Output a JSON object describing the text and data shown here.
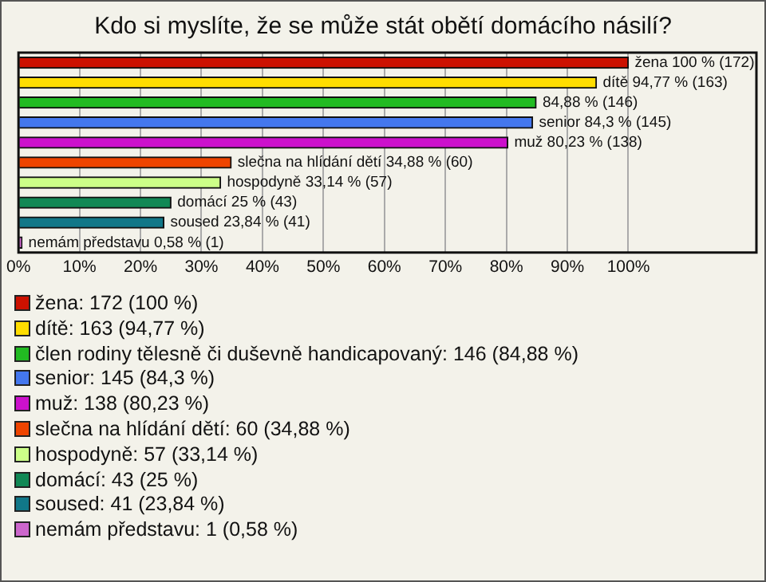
{
  "chart_data": {
    "type": "bar",
    "orientation": "horizontal",
    "title": "Kdo si myslíte, že se může stát obětí domácího násilí?",
    "categories": [
      null,
      null,
      null,
      null,
      null,
      null,
      null,
      null,
      null,
      null
    ],
    "values": [
      100,
      94.77,
      84.88,
      84.3,
      80.23,
      34.88,
      33.14,
      25,
      23.84,
      0.58
    ],
    "colors": [
      "#cc1100",
      "#ffdd00",
      "#22bb22",
      "#4477ee",
      "#cc11cc",
      "#ee4400",
      "#ccff88",
      "#118855",
      "#117788",
      "#cc66cc"
    ],
    "value_labels": [
      "žena 100 % (172)",
      "dítě 94,77 % (163)",
      "84,88 % (146)",
      "senior 84,3 % (145)",
      "muž 80,23 % (138)",
      "slečna na hlídání dětí 34,88 % (60)",
      "hospodyně 33,14 % (57)",
      "domácí 25 % (43)",
      "soused 23,84 % (41)",
      "nemám představu 0,58 % (1)"
    ],
    "annotations": [
      "žena: 172 (100 %)",
      "dítě: 163 (94,77 %)",
      "člen rodiny tělesně či duševně handicapovaný: 146 (84,88 %)",
      "senior: 145 (84,3 %)",
      "muž: 138 (80,23 %)",
      "slečna na hlídání dětí: 60 (34,88 %)",
      "hospodyně: 57 (33,14 %)",
      "domácí: 43 (25 %)",
      "soused: 41 (23,84 %)",
      "nemám představu: 1 (0,58 %)"
    ],
    "xlim": [
      0,
      121
    ],
    "xticks": [
      {
        "value": 0,
        "label": "0%"
      },
      {
        "value": 10,
        "label": "10%"
      },
      {
        "value": 20,
        "label": "20%"
      },
      {
        "value": 30,
        "label": "30%"
      },
      {
        "value": 40,
        "label": "40%"
      },
      {
        "value": 50,
        "label": "50%"
      },
      {
        "value": 60,
        "label": "60%"
      },
      {
        "value": 70,
        "label": "70%"
      },
      {
        "value": 80,
        "label": "80%"
      },
      {
        "value": 90,
        "label": "90%"
      },
      {
        "value": 100,
        "label": "100%"
      }
    ],
    "grid": "x",
    "tick_labels": "x"
  }
}
